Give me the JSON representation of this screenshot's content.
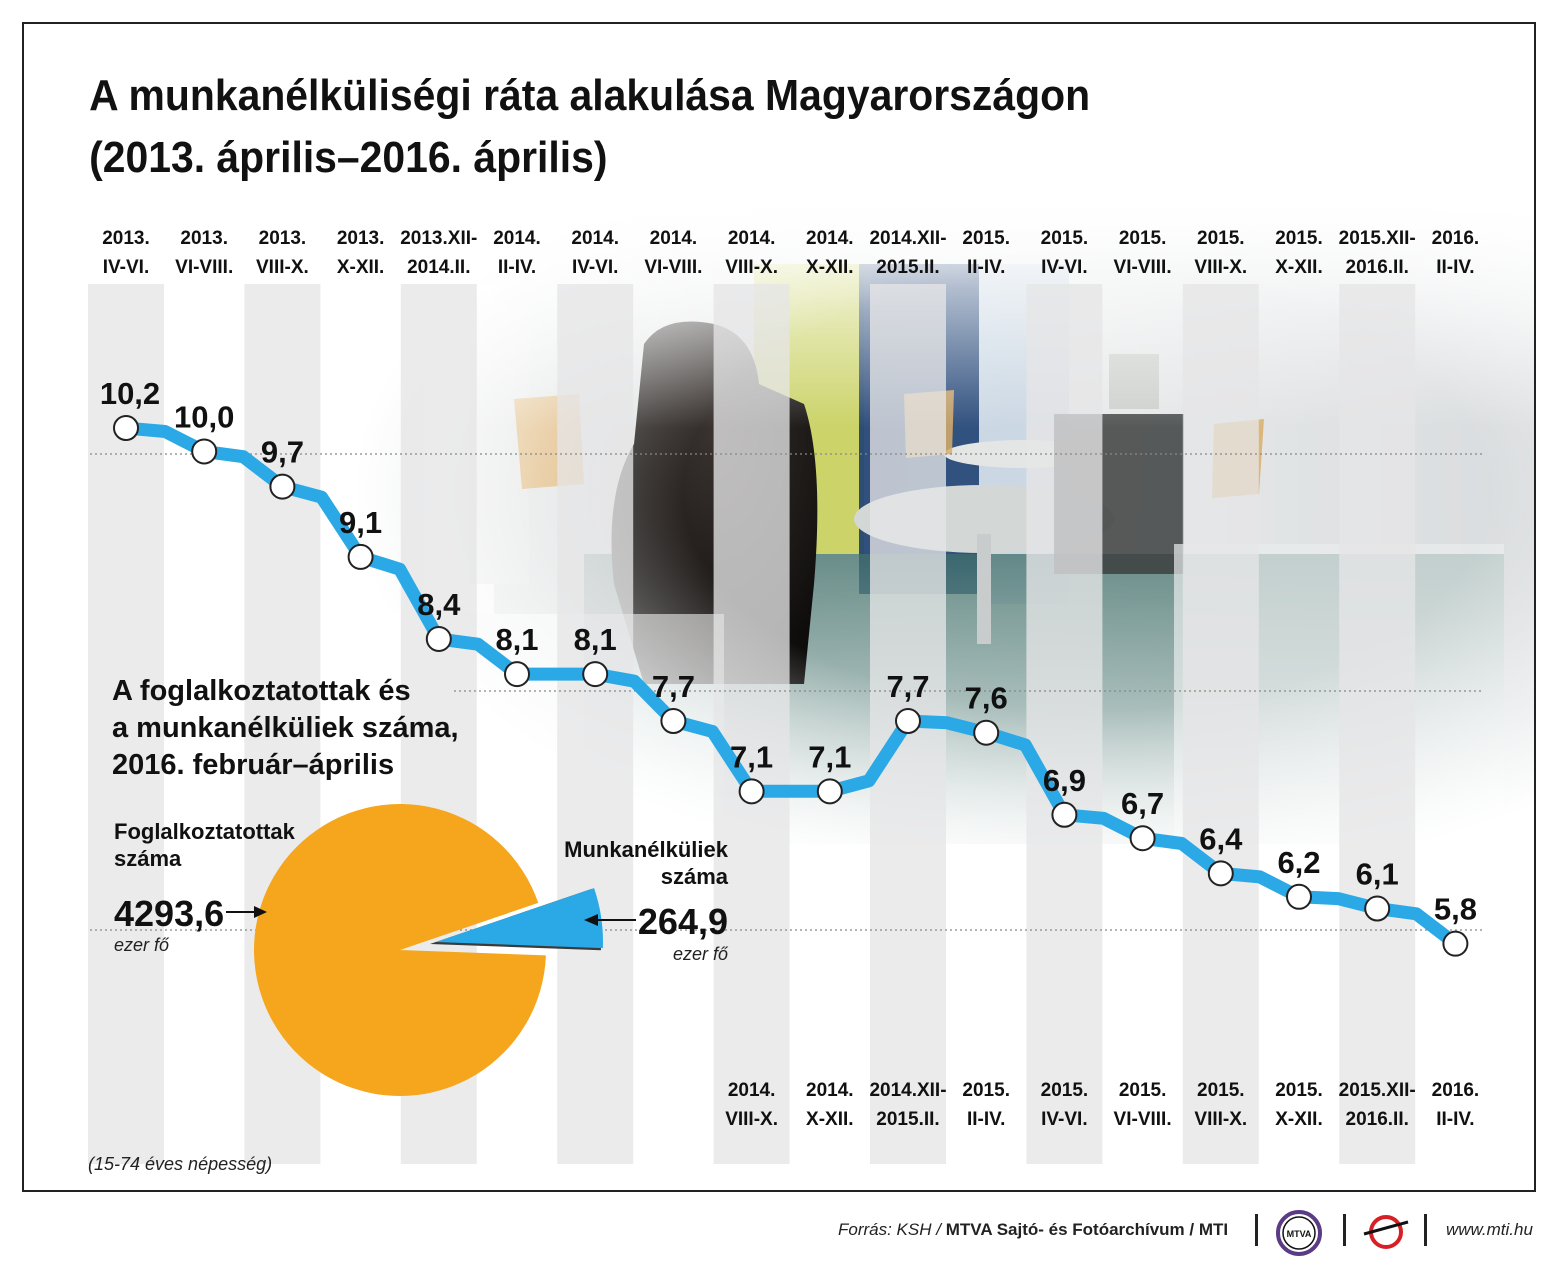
{
  "title_line1": "A munkanélküliségi ráta alakulása Magyarországon",
  "title_line2": "(2013. április–2016. április)",
  "chart_data": [
    {
      "type": "line",
      "periods": [
        [
          "2013.",
          "IV-VI."
        ],
        [
          "2013.",
          "VI-VIII."
        ],
        [
          "2013.",
          "VIII-X."
        ],
        [
          "2013.",
          "X-XII."
        ],
        [
          "2013.XII-",
          "2014.II."
        ],
        [
          "2014.",
          "II-IV."
        ],
        [
          "2014.",
          "IV-VI."
        ],
        [
          "2014.",
          "VI-VIII."
        ],
        [
          "2014.",
          "VIII-X."
        ],
        [
          "2014.",
          "X-XII."
        ],
        [
          "2014.XII-",
          "2015.II."
        ],
        [
          "2015.",
          "II-IV."
        ],
        [
          "2015.",
          "IV-VI."
        ],
        [
          "2015.",
          "VI-VIII."
        ],
        [
          "2015.",
          "VIII-X."
        ],
        [
          "2015.",
          "X-XII."
        ],
        [
          "2015.XII-",
          "2016.II."
        ],
        [
          "2016.",
          "II-IV."
        ]
      ],
      "values": [
        10.2,
        10.0,
        9.7,
        9.1,
        8.4,
        8.1,
        8.1,
        7.7,
        7.1,
        7.1,
        7.7,
        7.6,
        6.9,
        6.7,
        6.4,
        6.2,
        6.1,
        5.8
      ],
      "value_labels": [
        "10,2",
        "10,0",
        "9,7",
        "9,1",
        "8,4",
        "8,1",
        "8,1",
        "7,7",
        "7,1",
        "7,1",
        "7,7",
        "7,6",
        "6,9",
        "6,7",
        "6,4",
        "6,2",
        "6,1",
        "5,8"
      ],
      "bottom_label_start_index": 8,
      "colors": {
        "line": "#2aa9e6",
        "marker_fill": "#ffffff",
        "marker_stroke": "#222222"
      }
    },
    {
      "type": "pie",
      "title_lines": [
        "A foglalkoztatottak és",
        "a munkanélküliek száma,",
        "2016. február–április"
      ],
      "slices": [
        {
          "name_lines": [
            "Foglalkoztatottak",
            "száma"
          ],
          "value": 4293.6,
          "value_label": "4293,6",
          "unit": "ezer fő",
          "color": "#f5a61d"
        },
        {
          "name_lines": [
            "Munkanélküliek",
            "száma"
          ],
          "value": 264.9,
          "value_label": "264,9",
          "unit": "ezer fő",
          "color": "#2aa9e6"
        }
      ]
    }
  ],
  "note": "(15-74 éves népesség)",
  "footer": {
    "source_prefix": "Forrás: KSH /",
    "source_bold": "MTVA Sajtó- és Fotóarchívum",
    "source_suffix": "/ MTI",
    "logo1_text": "MTVA",
    "website": "www.mti.hu"
  }
}
